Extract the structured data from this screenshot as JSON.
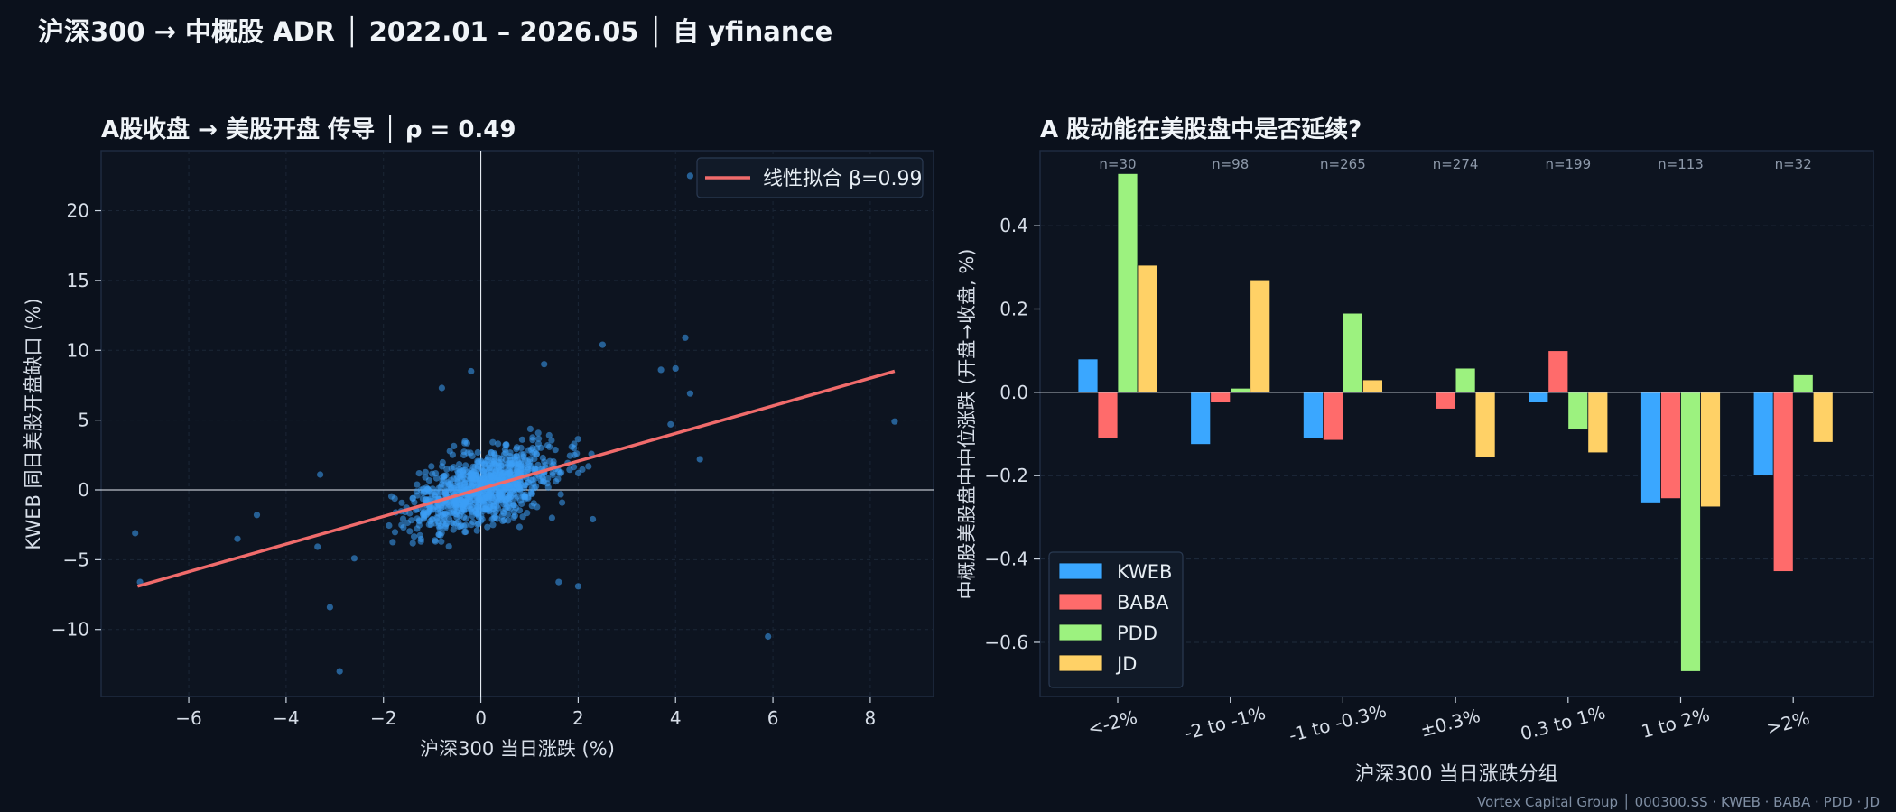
{
  "figure": {
    "title": "沪深300 → 中概股 ADR │ 2022.01 – 2026.05 │ 自 yfinance",
    "footer": "Vortex Capital Group │ 000300.SS · KWEB · BABA · PDD · JD"
  },
  "colors": {
    "background": "#0b111c",
    "panel": "#0d1420",
    "scatter": "#3d9ef5",
    "fit_line": "#f06b6b",
    "KWEB": "#3aa7ff",
    "BABA": "#ff6b6b",
    "PDD": "#9cf27f",
    "JD": "#ffd166"
  },
  "chart_data": [
    {
      "type": "scatter",
      "title": "A股收盘 → 美股开盘 传导 │ ρ = 0.49",
      "xlabel": "沪深300 当日涨跌 (%)",
      "ylabel": "KWEB 同日美股开盘缺口 (%)",
      "xlim": [
        -7.8,
        9.3
      ],
      "ylim": [
        -14.8,
        24.3
      ],
      "xticks": [
        "−6",
        "−4",
        "−2",
        "0",
        "2",
        "4",
        "6",
        "8"
      ],
      "xtick_values": [
        -6,
        -4,
        -2,
        0,
        2,
        4,
        6,
        8
      ],
      "yticks": [
        "−10",
        "−5",
        "0",
        "5",
        "10",
        "15",
        "20"
      ],
      "ytick_values": [
        -10,
        -5,
        0,
        5,
        10,
        15,
        20
      ],
      "grid": true,
      "legend_position": "top-right",
      "fit": {
        "label": "线性拟合 β=0.99",
        "x": [
          -7.05,
          8.5
        ],
        "y": [
          -6.9,
          8.5
        ]
      },
      "outliers": [
        [
          -7.1,
          -3.1
        ],
        [
          -7.0,
          -6.6
        ],
        [
          -5.0,
          -3.5
        ],
        [
          -4.6,
          -1.8
        ],
        [
          -3.3,
          1.1
        ],
        [
          -3.1,
          -8.4
        ],
        [
          -2.9,
          -13.0
        ],
        [
          -2.6,
          -4.9
        ],
        [
          4.2,
          10.9
        ],
        [
          4.3,
          22.5
        ],
        [
          5.9,
          -10.5
        ],
        [
          8.5,
          4.9
        ],
        [
          2.5,
          10.4
        ],
        [
          4.0,
          8.7
        ],
        [
          3.7,
          8.6
        ],
        [
          1.3,
          9.0
        ],
        [
          4.5,
          2.2
        ],
        [
          2.3,
          -2.1
        ],
        [
          2.0,
          -6.9
        ],
        [
          1.6,
          -6.6
        ],
        [
          -0.2,
          8.5
        ],
        [
          -0.8,
          7.3
        ],
        [
          4.3,
          6.9
        ],
        [
          3.9,
          4.7
        ]
      ],
      "cluster": {
        "n": 980,
        "center_x": 0.0,
        "center_y": 0.0,
        "sd_x": 0.75,
        "sd_y": 1.45,
        "rho": 0.49
      }
    },
    {
      "type": "bar",
      "title": "A 股动能在美股盘中是否延续?",
      "xlabel": "沪深300 当日涨跌分组",
      "ylabel": "中概股美股盘中中位涨跌 (开盘→收盘, %)",
      "ylim": [
        -0.73,
        0.58
      ],
      "yticks": [
        "−0.6",
        "−0.4",
        "−0.2",
        "0.0",
        "0.2",
        "0.4"
      ],
      "ytick_values": [
        -0.6,
        -0.4,
        -0.2,
        0.0,
        0.2,
        0.4
      ],
      "categories": [
        "<-2%",
        "-2 to -1%",
        "-1 to -0.3%",
        "±0.3%",
        "0.3 to 1%",
        "1 to 2%",
        ">2%"
      ],
      "counts": [
        "n=30",
        "n=98",
        "n=265",
        "n=274",
        "n=199",
        "n=113",
        "n=32"
      ],
      "legend_position": "bottom-left",
      "series": [
        {
          "name": "KWEB",
          "values": [
            0.08,
            -0.125,
            -0.11,
            0.0,
            -0.025,
            -0.265,
            -0.2
          ]
        },
        {
          "name": "BABA",
          "values": [
            -0.11,
            -0.025,
            -0.115,
            -0.04,
            0.1,
            -0.255,
            -0.43
          ]
        },
        {
          "name": "PDD",
          "values": [
            0.525,
            0.01,
            0.19,
            0.058,
            -0.09,
            -0.67,
            0.042
          ]
        },
        {
          "name": "JD",
          "values": [
            0.305,
            0.27,
            0.03,
            -0.155,
            -0.145,
            -0.275,
            -0.12
          ]
        }
      ]
    }
  ]
}
